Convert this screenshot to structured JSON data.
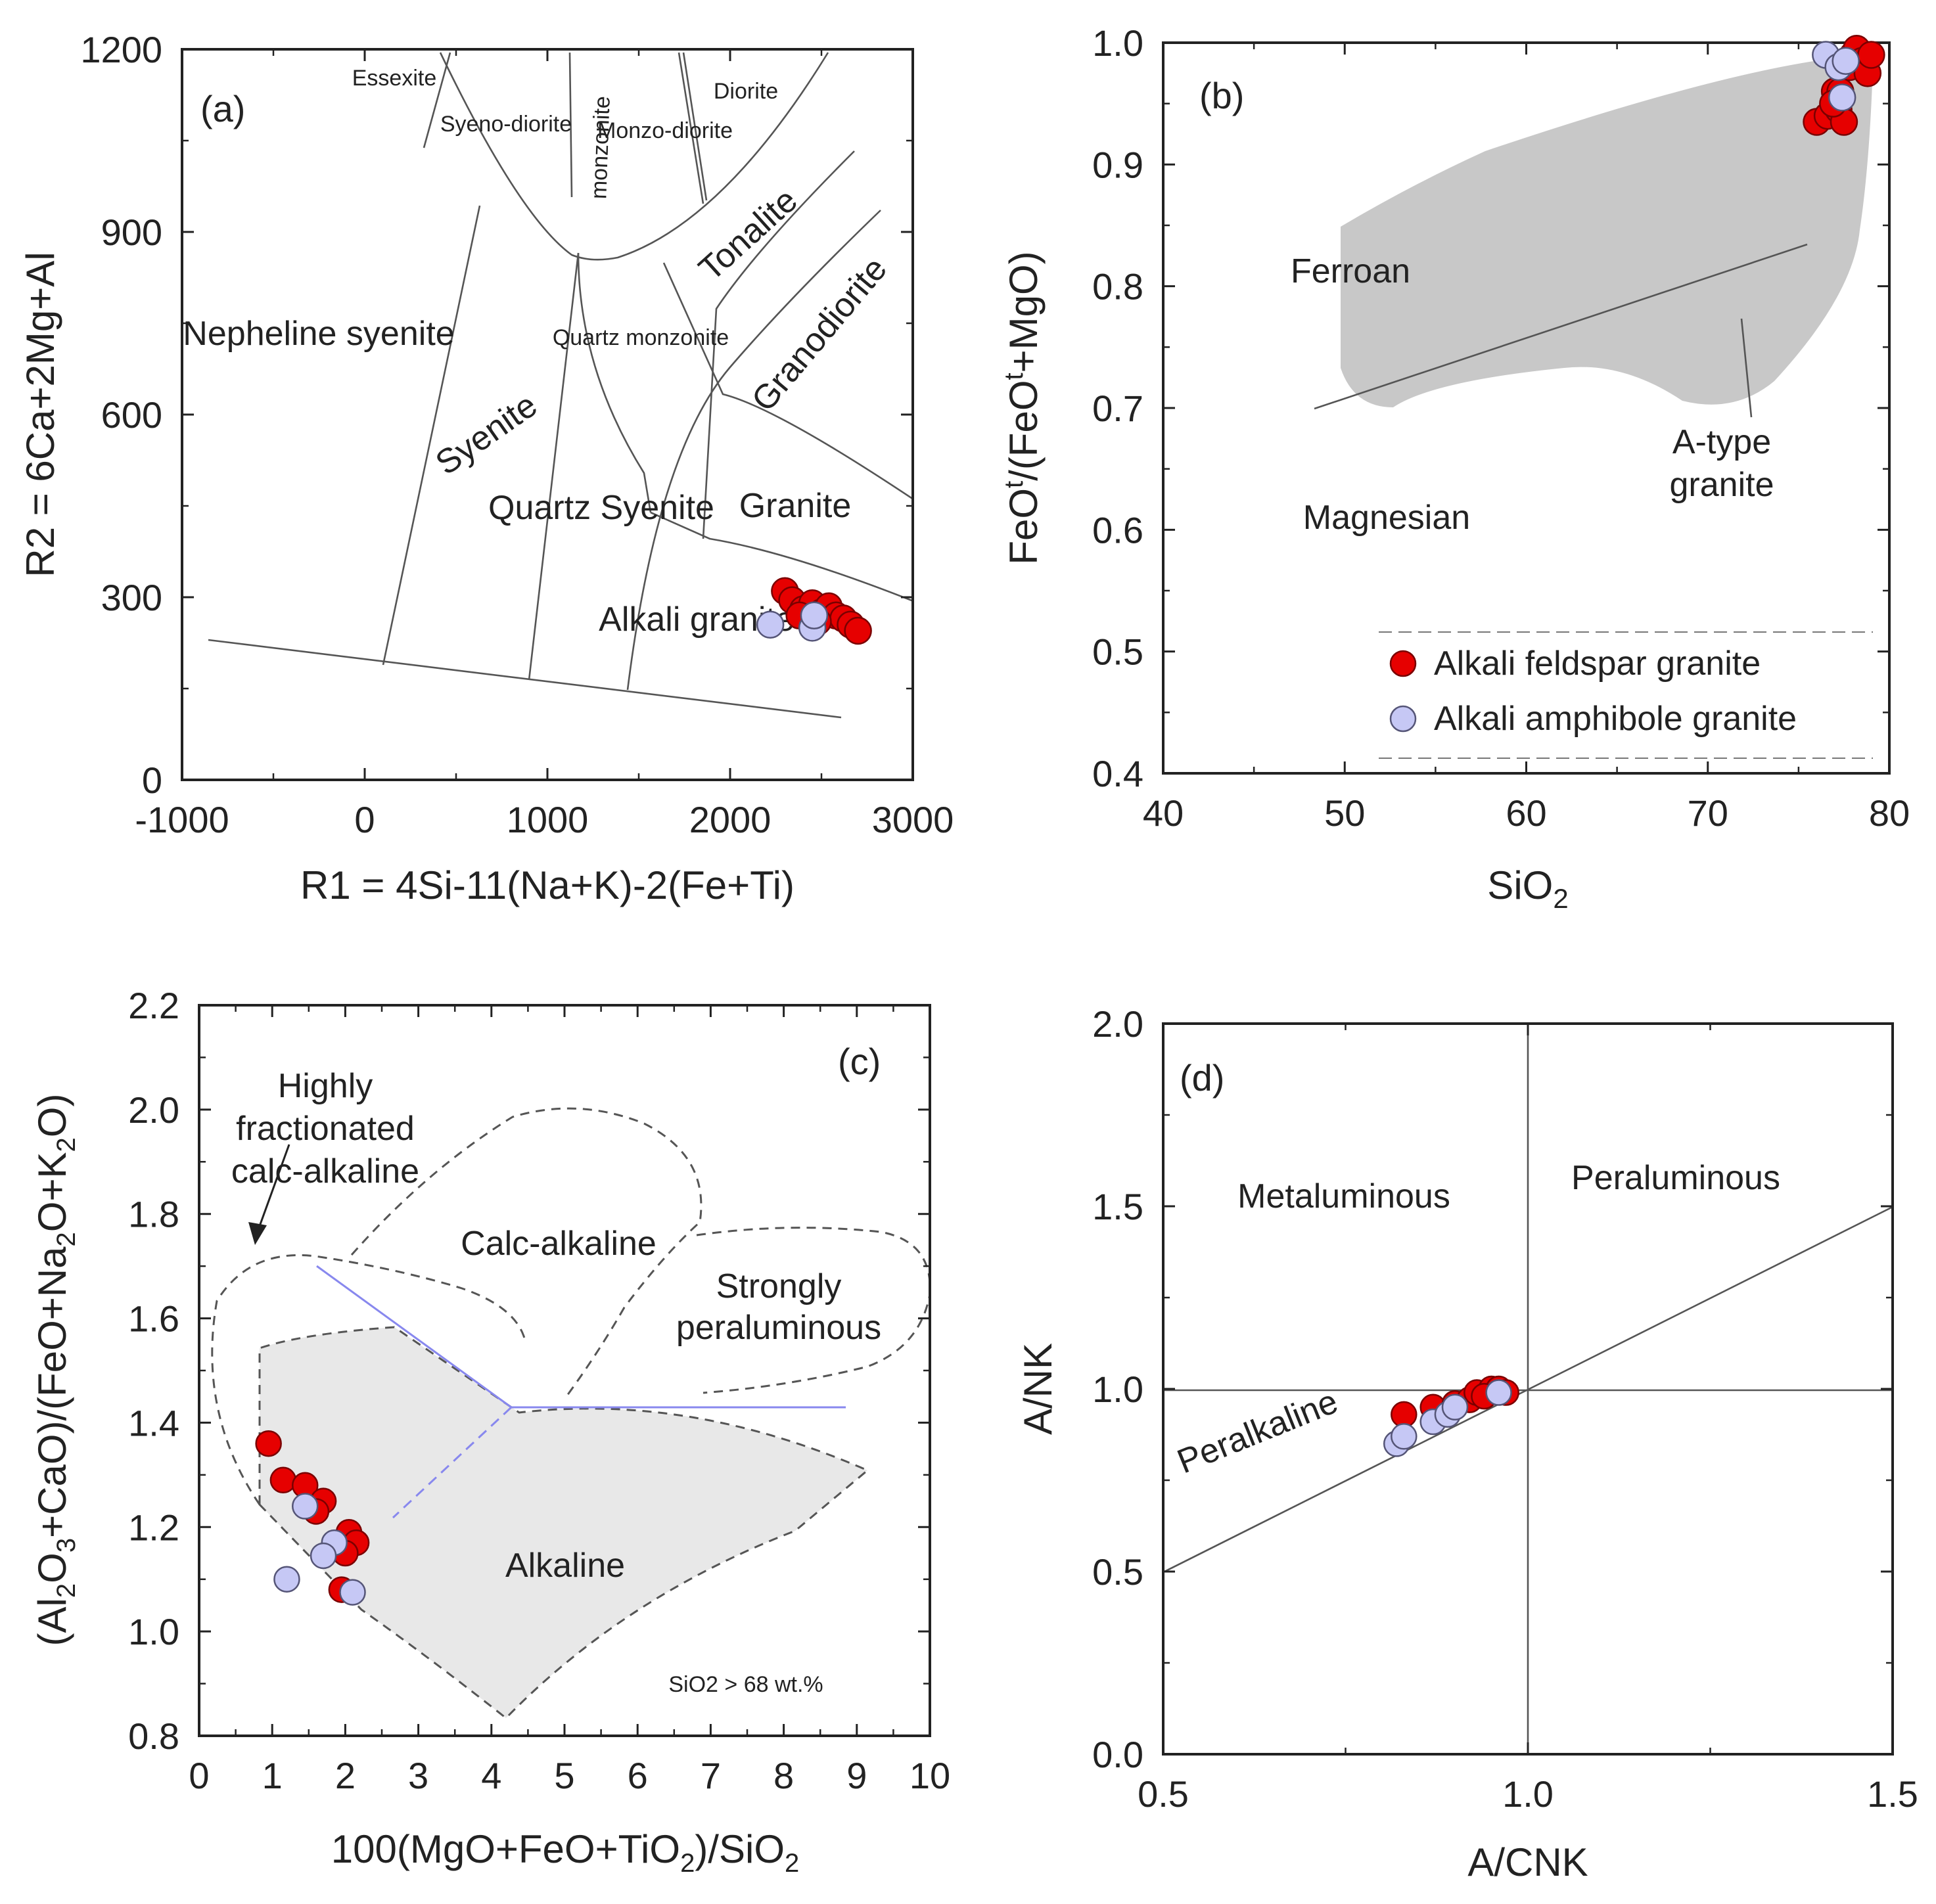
{
  "chart_data": [
    {
      "panel": "(a)",
      "type": "scatter",
      "xlabel": "R1 = 4Si-11(Na+K)-2(Fe+Ti)",
      "ylabel": "R2 = 6Ca+2Mg+Al",
      "xlim": [
        -1000,
        3000
      ],
      "ylim": [
        0,
        1200
      ],
      "xticks": [
        "-1000",
        "0",
        "1000",
        "2000",
        "3000"
      ],
      "yticks": [
        "0",
        "300",
        "600",
        "900",
        "1200"
      ],
      "regions": [
        "Essexite",
        "Syeno-diorite",
        "monzonite",
        "Monzo-diorite",
        "Diorite",
        "Tonalite",
        "Granodiorite",
        "Nepheline syenite",
        "Syenite",
        "Quartz monzonite",
        "Quartz Syenite",
        "Granite",
        "Alkali granite"
      ],
      "series": [
        {
          "name": "Alkali feldspar granite",
          "color": "#e60000",
          "x": [
            2300,
            2340,
            2400,
            2450,
            2500,
            2540,
            2580,
            2620,
            2660,
            2700,
            2480,
            2380
          ],
          "y": [
            310,
            295,
            280,
            290,
            275,
            285,
            270,
            265,
            255,
            245,
            260,
            270
          ]
        },
        {
          "name": "Alkali amphibole granite",
          "color": "#c6c8f5",
          "x": [
            2220,
            2450,
            2460
          ],
          "y": [
            255,
            250,
            270
          ]
        }
      ]
    },
    {
      "panel": "(b)",
      "type": "scatter",
      "xlabel": "SiO2",
      "ylabel": "FeOt/(FeOt+MgO)",
      "xlim": [
        40,
        80
      ],
      "ylim": [
        0.4,
        1.0
      ],
      "xticks": [
        "40",
        "50",
        "60",
        "70",
        "80"
      ],
      "yticks": [
        "0.4",
        "0.5",
        "0.6",
        "0.7",
        "0.8",
        "0.9",
        "1.0"
      ],
      "regions": [
        "Ferroan",
        "Magnesian",
        "A-type granite"
      ],
      "legend": [
        "Alkali feldspar granite",
        "Alkali amphibole granite"
      ],
      "series": [
        {
          "name": "Alkali feldspar granite",
          "color": "#e60000",
          "x": [
            76.0,
            76.6,
            77.0,
            77.2,
            77.5,
            77.8,
            78.0,
            78.2,
            78.5,
            78.8,
            79.0,
            77.3,
            76.9
          ],
          "y": [
            0.935,
            0.94,
            0.96,
            0.945,
            0.935,
            0.98,
            0.99,
            0.995,
            0.985,
            0.975,
            0.99,
            0.96,
            0.95
          ]
        },
        {
          "name": "Alkali amphibole granite",
          "color": "#c6c8f5",
          "x": [
            76.5,
            77.2,
            77.6,
            77.4
          ],
          "y": [
            0.99,
            0.98,
            0.985,
            0.955
          ]
        }
      ]
    },
    {
      "panel": "(c)",
      "type": "scatter",
      "xlabel": "100(MgO+FeO+TiO2)/SiO2",
      "ylabel": "(Al2O3+CaO)/(FeO+Na2O+K2O)",
      "xlim": [
        0,
        10
      ],
      "ylim": [
        0.8,
        2.2
      ],
      "xticks": [
        "0",
        "1",
        "2",
        "3",
        "4",
        "5",
        "6",
        "7",
        "8",
        "9",
        "10"
      ],
      "yticks": [
        "0.8",
        "1.0",
        "1.2",
        "1.4",
        "1.6",
        "1.8",
        "2.0",
        "2.2"
      ],
      "regions": [
        "Highly fractionated calc-alkaline",
        "Calc-alkaline",
        "Strongly peraluminous",
        "Alkaline"
      ],
      "annotation": "SiO2 > 68 wt.%",
      "series": [
        {
          "name": "Alkali feldspar granite",
          "color": "#e60000",
          "x": [
            0.95,
            1.15,
            1.45,
            1.7,
            1.6,
            2.05,
            2.15,
            2.0,
            1.95
          ],
          "y": [
            1.36,
            1.29,
            1.28,
            1.25,
            1.23,
            1.19,
            1.17,
            1.15,
            1.08
          ]
        },
        {
          "name": "Alkali amphibole granite",
          "color": "#c6c8f5",
          "x": [
            1.45,
            1.85,
            1.7,
            1.2,
            2.1
          ],
          "y": [
            1.24,
            1.17,
            1.145,
            1.1,
            1.075
          ]
        }
      ]
    },
    {
      "panel": "(d)",
      "type": "scatter",
      "xlabel": "A/CNK",
      "ylabel": "A/NK",
      "xlim": [
        0.5,
        1.5
      ],
      "ylim": [
        0.0,
        2.0
      ],
      "xticks": [
        "0.5",
        "1.0",
        "1.5"
      ],
      "yticks": [
        "0.0",
        "0.5",
        "1.0",
        "1.5",
        "2.0"
      ],
      "regions": [
        "Metaluminous",
        "Peraluminous",
        "Peralkaline"
      ],
      "series": [
        {
          "name": "Alkali feldspar granite",
          "color": "#e60000",
          "x": [
            0.83,
            0.87,
            0.9,
            0.92,
            0.93,
            0.95,
            0.96,
            0.97,
            0.94
          ],
          "y": [
            0.93,
            0.95,
            0.96,
            0.97,
            0.99,
            1.0,
            1.0,
            0.99,
            0.98
          ]
        },
        {
          "name": "Alkali amphibole granite",
          "color": "#c6c8f5",
          "x": [
            0.82,
            0.83,
            0.87,
            0.89,
            0.9,
            0.96
          ],
          "y": [
            0.85,
            0.87,
            0.91,
            0.93,
            0.95,
            0.99
          ]
        }
      ]
    }
  ]
}
